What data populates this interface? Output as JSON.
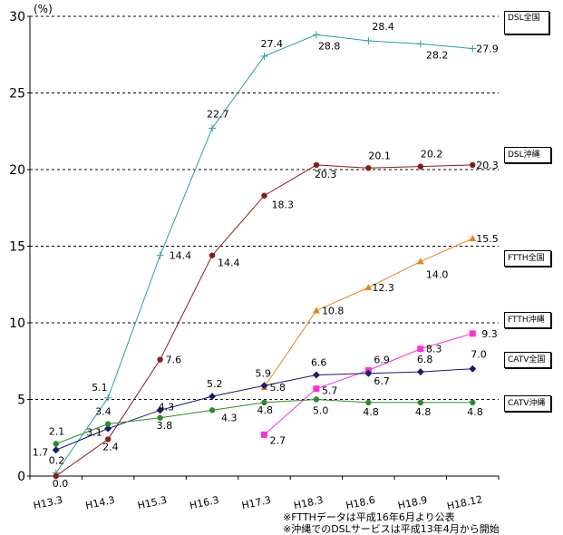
{
  "chart_data": {
    "type": "line",
    "unit_label": "(%)",
    "ylim": [
      0,
      30
    ],
    "y_ticks": [
      "0",
      "5",
      "10",
      "15",
      "20",
      "25",
      "30"
    ],
    "categories": [
      "H13.3",
      "H14.3",
      "H15.3",
      "H16.3",
      "H17.3",
      "H18.3",
      "H18.6",
      "H18.9",
      "H18.12"
    ],
    "notes": [
      "※FTTHデータは平成16年6月より公表",
      "※沖縄でのDSLサービスは平成13年4月から開始"
    ],
    "series": [
      {
        "name": "DSL全国",
        "color": "#2e9c9c",
        "marker": "plus",
        "points": [
          [
            0.5,
            0.2
          ],
          [
            1.5,
            5.1
          ],
          [
            2.5,
            14.4
          ],
          [
            3.5,
            22.7
          ],
          [
            4.5,
            27.4
          ],
          [
            5.5,
            28.8
          ],
          [
            6.5,
            28.4
          ],
          [
            7.5,
            28.2
          ],
          [
            8.5,
            27.9
          ]
        ],
        "labels": [
          "0.2",
          "5.1",
          "14.4",
          "22.7",
          "27.4",
          "28.8",
          "28.4",
          "28.2",
          "27.9"
        ]
      },
      {
        "name": "DSL沖縄",
        "color": "#8b1a1a",
        "marker": "circle",
        "points": [
          [
            0.5,
            0.0
          ],
          [
            1.5,
            2.4
          ],
          [
            2.5,
            7.6
          ],
          [
            3.5,
            14.4
          ],
          [
            4.5,
            18.3
          ],
          [
            5.5,
            20.3
          ],
          [
            6.5,
            20.1
          ],
          [
            7.5,
            20.2
          ],
          [
            8.5,
            20.3
          ]
        ],
        "labels": [
          "0.0",
          "2.4",
          "7.6",
          "14.4",
          "18.3",
          "20.3",
          "20.1",
          "20.2",
          "20.3"
        ]
      },
      {
        "name": "FTTH全国",
        "color": "#e8821e",
        "marker": "triangle",
        "points": [
          [
            4.5,
            5.8
          ],
          [
            5.5,
            10.8
          ],
          [
            6.5,
            12.3
          ],
          [
            7.5,
            14.0
          ],
          [
            8.5,
            15.5
          ]
        ],
        "labels": [
          "5.8",
          "10.8",
          "12.3",
          "14.0",
          "15.5"
        ]
      },
      {
        "name": "FTTH沖縄",
        "color": "#ff2fd0",
        "marker": "square",
        "points": [
          [
            4.5,
            2.7
          ],
          [
            5.5,
            5.7
          ],
          [
            6.5,
            6.9
          ],
          [
            7.5,
            8.3
          ],
          [
            8.5,
            9.3
          ]
        ],
        "labels": [
          "2.7",
          "5.7",
          "6.9",
          "8.3",
          "9.3"
        ]
      },
      {
        "name": "CATV全国",
        "color": "#1a1a6e",
        "marker": "diamond",
        "points": [
          [
            0.5,
            1.7
          ],
          [
            1.5,
            3.1
          ],
          [
            2.5,
            4.3
          ],
          [
            3.5,
            5.2
          ],
          [
            4.5,
            5.9
          ],
          [
            5.5,
            6.6
          ],
          [
            6.5,
            6.7
          ],
          [
            7.5,
            6.8
          ],
          [
            8.5,
            7.0
          ]
        ],
        "labels": [
          "1.7",
          "3.1",
          "4.3",
          "5.2",
          "5.9",
          "6.6",
          "6.7",
          "6.8",
          "7.0"
        ]
      },
      {
        "name": "CATV沖縄",
        "color": "#2a8a2a",
        "marker": "circle",
        "points": [
          [
            0.5,
            2.1
          ],
          [
            1.5,
            3.4
          ],
          [
            2.5,
            3.8
          ],
          [
            3.5,
            4.3
          ],
          [
            4.5,
            4.8
          ],
          [
            5.5,
            5.0
          ],
          [
            6.5,
            4.8
          ],
          [
            7.5,
            4.8
          ],
          [
            8.5,
            4.8
          ]
        ],
        "labels": [
          "2.1",
          "3.4",
          "3.8",
          "4.3",
          "4.8",
          "5.0",
          "4.8",
          "4.8",
          "4.8"
        ]
      }
    ]
  }
}
